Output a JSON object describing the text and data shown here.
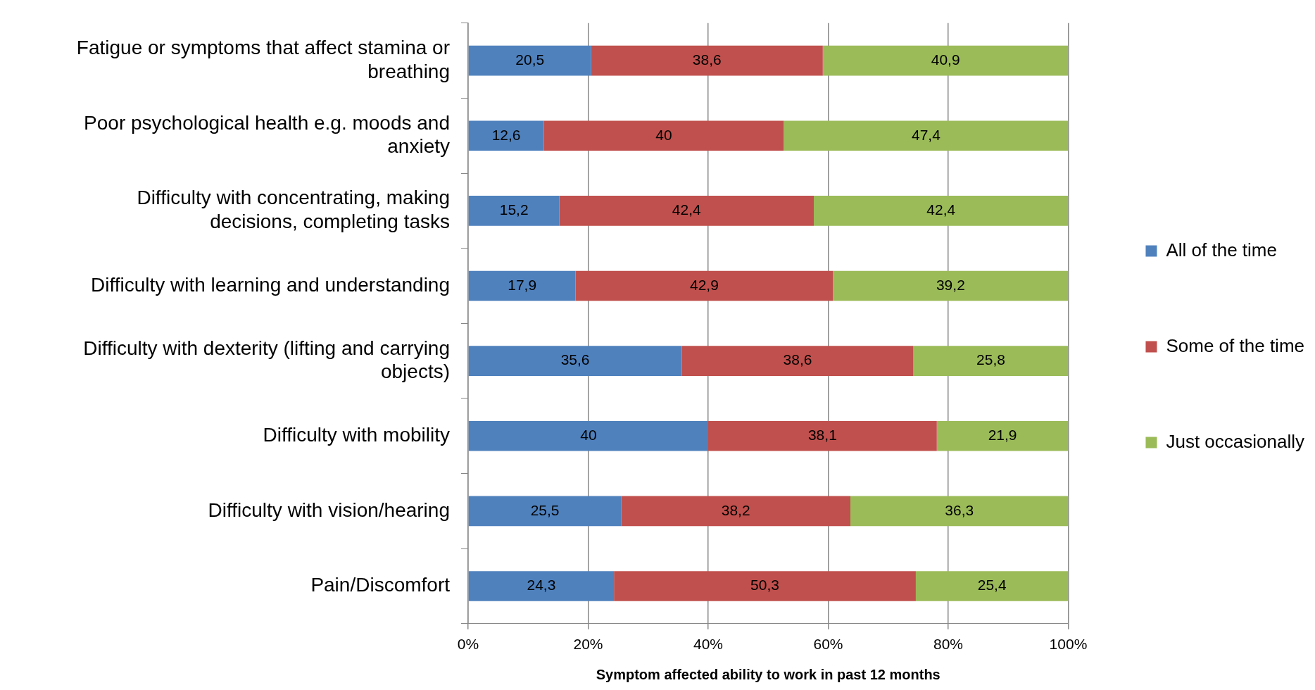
{
  "chart_data": {
    "type": "bar",
    "orientation": "horizontal",
    "stacked": true,
    "xlabel": "Symptom affected ability to work in past 12 months",
    "categories": [
      "Fatigue or symptoms that affect stamina or breathing",
      "Poor psychological health e.g. moods and anxiety",
      "Difficulty with concentrating, making decisions, completing tasks",
      "Difficulty with learning and understanding",
      "Difficulty with dexterity (lifting and carrying objects)",
      "Difficulty with mobility",
      "Difficulty with vision/hearing",
      "Pain/Discomfort"
    ],
    "series": [
      {
        "name": "All of the time",
        "color": "#4f81bd",
        "values": [
          20.5,
          12.6,
          15.2,
          17.9,
          35.6,
          40,
          25.5,
          24.3
        ],
        "value_labels": [
          "20,5",
          "12,6",
          "15,2",
          "17,9",
          "35,6",
          "40",
          "25,5",
          "24,3"
        ]
      },
      {
        "name": "Some of the time",
        "color": "#c0504d",
        "values": [
          38.6,
          40,
          42.4,
          42.9,
          38.6,
          38.1,
          38.2,
          50.3
        ],
        "value_labels": [
          "38,6",
          "40",
          "42,4",
          "42,9",
          "38,6",
          "38,1",
          "38,2",
          "50,3"
        ]
      },
      {
        "name": "Just occasionally",
        "color": "#9bbb59",
        "values": [
          40.9,
          47.4,
          42.4,
          39.2,
          25.8,
          21.9,
          36.3,
          25.4
        ],
        "value_labels": [
          "40,9",
          "47,4",
          "42,4",
          "39,2",
          "25,8",
          "21,9",
          "36,3",
          "25,4"
        ]
      }
    ],
    "xlim": [
      0,
      100
    ],
    "xticks": [
      {
        "value": 0,
        "label": "0%"
      },
      {
        "value": 20,
        "label": "20%"
      },
      {
        "value": 40,
        "label": "40%"
      },
      {
        "value": 60,
        "label": "60%"
      },
      {
        "value": 80,
        "label": "80%"
      },
      {
        "value": 100,
        "label": "100%"
      }
    ],
    "grid": "x",
    "legend": "right"
  }
}
